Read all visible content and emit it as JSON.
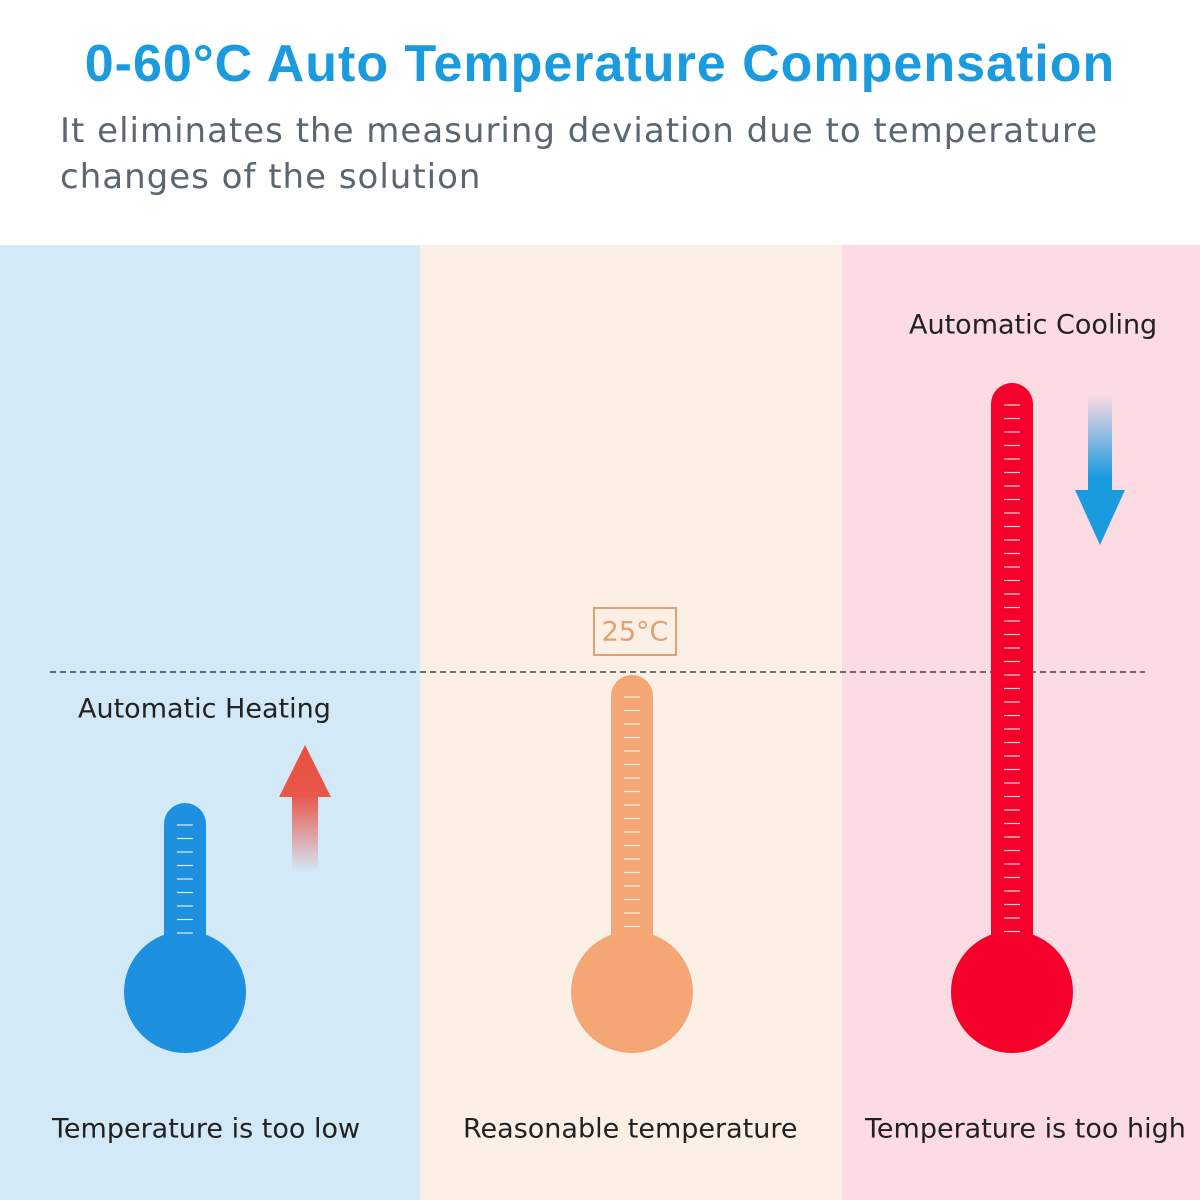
{
  "header": {
    "title": "0-60°C Auto Temperature Compensation",
    "subtitle": "It eliminates the measuring deviation due to temperature changes of the solution"
  },
  "panels": [
    {
      "action": "Automatic Heating",
      "caption": "Temperature is too low"
    },
    {
      "marker": "25°C",
      "caption": "Reasonable temperature"
    },
    {
      "action": "Automatic Cooling",
      "caption": "Temperature is too high"
    }
  ]
}
